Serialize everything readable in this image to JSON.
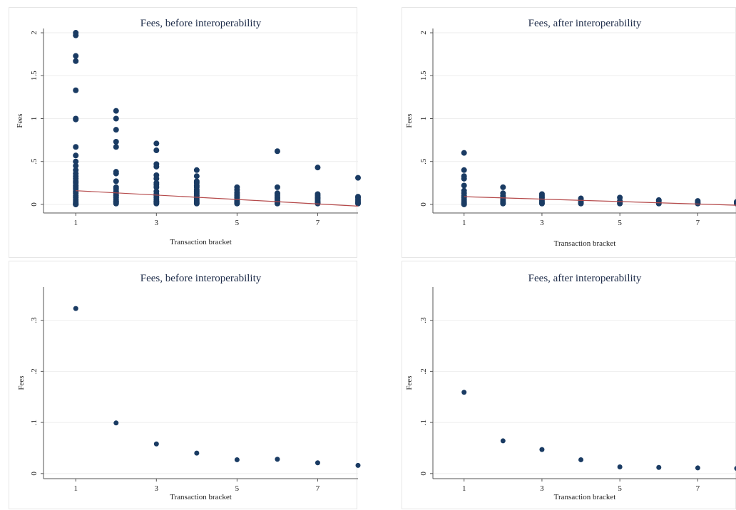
{
  "chart_data": [
    {
      "type": "scatter",
      "title": "Fees, before interoperability",
      "xlabel": "Transaction bracket",
      "ylabel": "Fees",
      "xlim": [
        0.2,
        8
      ],
      "ylim": [
        -0.1,
        2.05
      ],
      "xticks": [
        "1",
        "3",
        "5",
        "7"
      ],
      "yticks": [
        "0",
        ".5",
        "1",
        "1.5",
        "2"
      ],
      "grid": true,
      "fit_line": {
        "x": [
          1,
          8
        ],
        "y": [
          0.16,
          -0.02
        ]
      },
      "series": [
        {
          "x": [
            1,
            1,
            1,
            1,
            1,
            1,
            1,
            1,
            1,
            1,
            1,
            1,
            1,
            1,
            1,
            1,
            1,
            1,
            1,
            1,
            1,
            1,
            1,
            1,
            1,
            1,
            1,
            1,
            1,
            1,
            2,
            2,
            2,
            2,
            2,
            2,
            2,
            2,
            2,
            2,
            2,
            2,
            2,
            2,
            2,
            2,
            2,
            2,
            2,
            2,
            3,
            3,
            3,
            3,
            3,
            3,
            3,
            3,
            3,
            3,
            3,
            3,
            3,
            3,
            3,
            3,
            3,
            3,
            4,
            4,
            4,
            4,
            4,
            4,
            4,
            4,
            4,
            4,
            4,
            4,
            4,
            4,
            4,
            4,
            5,
            5,
            5,
            5,
            5,
            5,
            5,
            5,
            5,
            5,
            6,
            6,
            6,
            6,
            6,
            6,
            6,
            6,
            6,
            6,
            6,
            7,
            7,
            7,
            7,
            7,
            7,
            7,
            7,
            7,
            8,
            8,
            8,
            8,
            8,
            8,
            8
          ],
          "y": [
            2.0,
            1.97,
            1.73,
            1.67,
            1.33,
            1.0,
            0.99,
            0.67,
            0.57,
            0.5,
            0.45,
            0.4,
            0.36,
            0.33,
            0.3,
            0.27,
            0.25,
            0.22,
            0.2,
            0.18,
            0.15,
            0.13,
            0.1,
            0.08,
            0.06,
            0.04,
            0.02,
            0.01,
            0.0,
            0.0,
            1.09,
            1.0,
            0.87,
            0.73,
            0.67,
            0.38,
            0.36,
            0.27,
            0.2,
            0.18,
            0.15,
            0.13,
            0.11,
            0.1,
            0.08,
            0.06,
            0.04,
            0.03,
            0.02,
            0.01,
            0.71,
            0.63,
            0.47,
            0.44,
            0.34,
            0.3,
            0.25,
            0.23,
            0.2,
            0.15,
            0.12,
            0.1,
            0.08,
            0.06,
            0.04,
            0.03,
            0.02,
            0.01,
            0.4,
            0.33,
            0.27,
            0.25,
            0.22,
            0.2,
            0.17,
            0.15,
            0.13,
            0.11,
            0.1,
            0.08,
            0.06,
            0.04,
            0.02,
            0.01,
            0.2,
            0.17,
            0.14,
            0.12,
            0.1,
            0.08,
            0.06,
            0.04,
            0.02,
            0.01,
            0.62,
            0.2,
            0.13,
            0.12,
            0.1,
            0.08,
            0.07,
            0.05,
            0.04,
            0.02,
            0.01,
            0.43,
            0.12,
            0.1,
            0.08,
            0.07,
            0.05,
            0.03,
            0.02,
            0.01,
            0.31,
            0.09,
            0.08,
            0.06,
            0.04,
            0.02,
            0.01
          ]
        }
      ]
    },
    {
      "type": "scatter",
      "title": "Fees, after interoperability",
      "xlabel": "Transaction bracket",
      "ylabel": "Fees",
      "xlim": [
        0.2,
        8
      ],
      "ylim": [
        -0.1,
        2.05
      ],
      "xticks": [
        "1",
        "3",
        "5",
        "7"
      ],
      "yticks": [
        "0",
        ".5",
        "1",
        "1.5",
        "2"
      ],
      "grid": true,
      "fit_line": {
        "x": [
          1,
          8
        ],
        "y": [
          0.09,
          -0.01
        ]
      },
      "series": [
        {
          "x": [
            1,
            1,
            1,
            1,
            1,
            1,
            1,
            1,
            1,
            1,
            1,
            1,
            1,
            1,
            2,
            2,
            2,
            2,
            2,
            2,
            2,
            2,
            3,
            3,
            3,
            3,
            3,
            3,
            3,
            4,
            4,
            4,
            4,
            4,
            5,
            5,
            5,
            5,
            6,
            6,
            6,
            6,
            7,
            7,
            7,
            8,
            8,
            8
          ],
          "y": [
            0.6,
            0.4,
            0.33,
            0.3,
            0.22,
            0.16,
            0.13,
            0.1,
            0.08,
            0.06,
            0.04,
            0.02,
            0.01,
            0.0,
            0.2,
            0.13,
            0.1,
            0.08,
            0.06,
            0.04,
            0.02,
            0.01,
            0.12,
            0.1,
            0.08,
            0.06,
            0.04,
            0.02,
            0.01,
            0.07,
            0.05,
            0.04,
            0.02,
            0.01,
            0.08,
            0.04,
            0.02,
            0.01,
            0.05,
            0.04,
            0.02,
            0.01,
            0.04,
            0.02,
            0.01,
            0.03,
            0.02,
            0.01
          ]
        }
      ]
    },
    {
      "type": "scatter",
      "title": "Fees, before interoperability",
      "xlabel": "Transaction bracket",
      "ylabel": "Fees",
      "xlim": [
        0.2,
        8
      ],
      "ylim": [
        -0.01,
        0.365
      ],
      "xticks": [
        "1",
        "3",
        "5",
        "7"
      ],
      "yticks": [
        "0",
        ".1",
        ".2",
        ".3"
      ],
      "grid": true,
      "series": [
        {
          "x": [
            1,
            2,
            3,
            4,
            5,
            6,
            7,
            8
          ],
          "y": [
            0.323,
            0.099,
            0.058,
            0.04,
            0.027,
            0.028,
            0.021,
            0.016
          ]
        }
      ]
    },
    {
      "type": "scatter",
      "title": "Fees, after interoperability",
      "xlabel": "Transaction bracket",
      "ylabel": "Fees",
      "xlim": [
        0.2,
        8
      ],
      "ylim": [
        -0.01,
        0.365
      ],
      "xticks": [
        "1",
        "3",
        "5",
        "7"
      ],
      "yticks": [
        "0",
        ".1",
        ".2",
        ".3"
      ],
      "grid": true,
      "series": [
        {
          "x": [
            1,
            2,
            3,
            4,
            5,
            6,
            7,
            8
          ],
          "y": [
            0.159,
            0.064,
            0.047,
            0.027,
            0.013,
            0.012,
            0.011,
            0.01
          ]
        }
      ]
    }
  ]
}
